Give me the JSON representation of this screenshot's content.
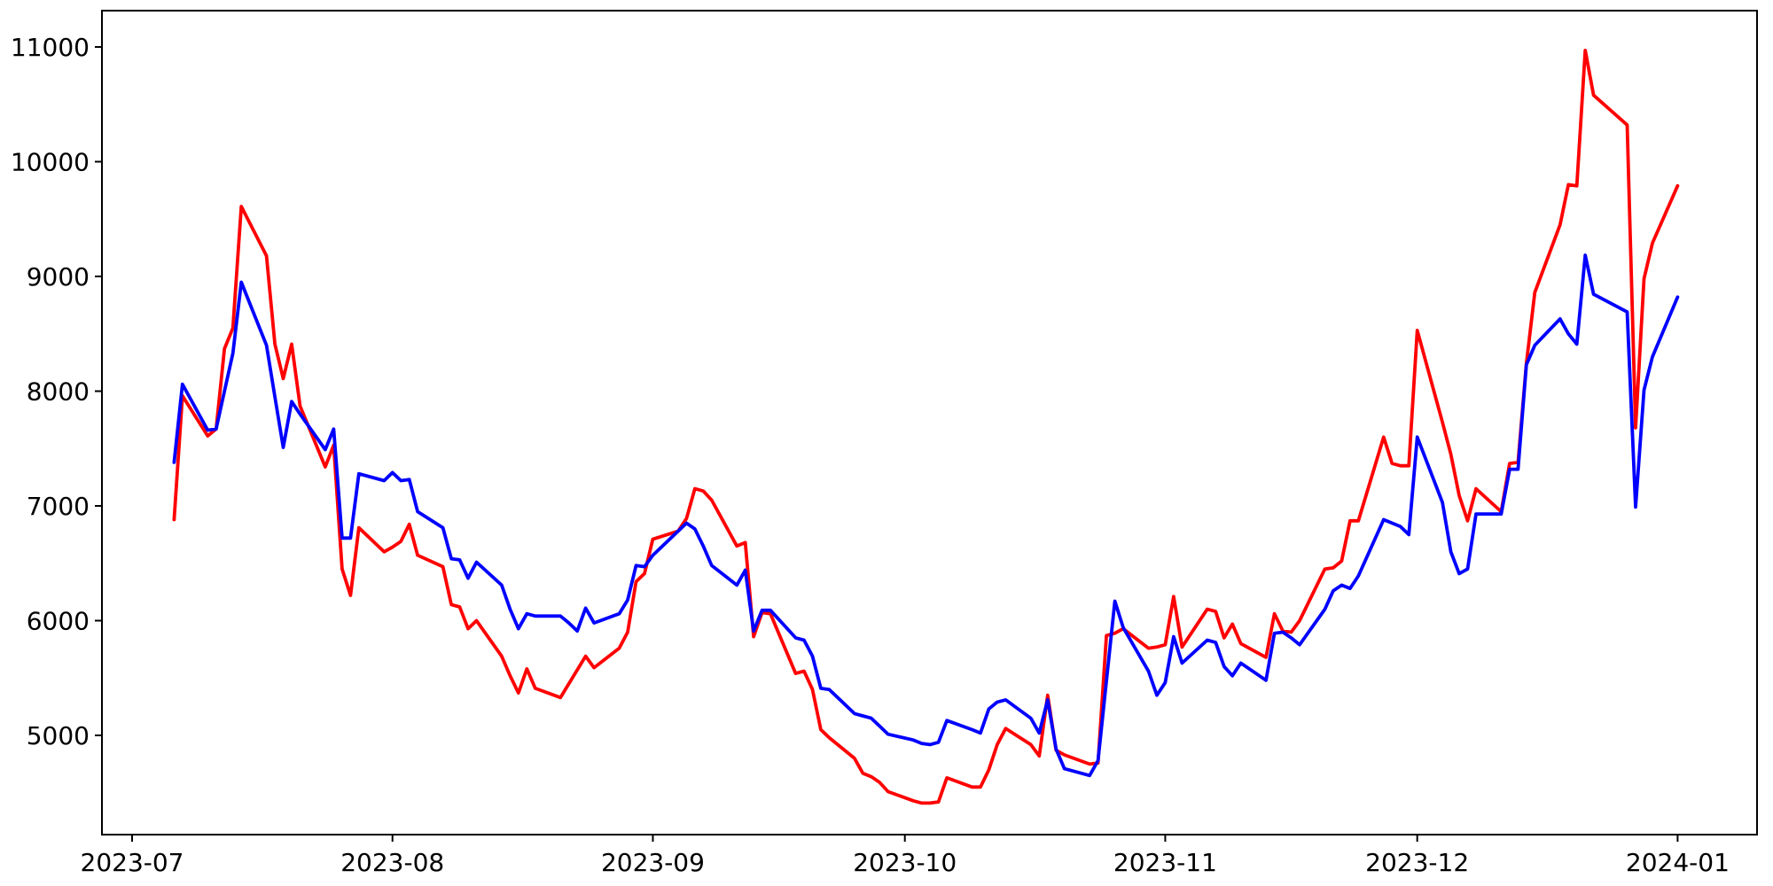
{
  "figure": {
    "background_color": "#ffffff",
    "axes_edge_color": "#000000",
    "tick_color": "#000000",
    "label_color": "#000000"
  },
  "chart_data": {
    "type": "line",
    "title": "",
    "xlabel": "",
    "ylabel": "",
    "grid": false,
    "legend": null,
    "x_axis": {
      "kind": "date",
      "tick_dates": [
        "2023-07-01",
        "2023-08-01",
        "2023-09-01",
        "2023-10-01",
        "2023-11-01",
        "2023-12-01",
        "2024-01-01"
      ],
      "tick_labels": [
        "2023-07",
        "2023-08",
        "2023-09",
        "2023-10",
        "2023-11",
        "2023-12",
        "2024-01"
      ],
      "xlim_dates": [
        "2023-06-27",
        "2024-01-10"
      ]
    },
    "y_axis": {
      "ticks": [
        5000,
        6000,
        7000,
        8000,
        9000,
        10000,
        11000
      ],
      "tick_labels": [
        "5000",
        "6000",
        "7000",
        "8000",
        "9000",
        "10000",
        "11000"
      ],
      "ylim": [
        4135,
        11317
      ]
    },
    "series": [
      {
        "name": "red-line",
        "color": "#ff0000",
        "points": [
          [
            "2023-07-06",
            6880
          ],
          [
            "2023-07-07",
            7960
          ],
          [
            "2023-07-10",
            7610
          ],
          [
            "2023-07-11",
            7670
          ],
          [
            "2023-07-12",
            8370
          ],
          [
            "2023-07-13",
            8550
          ],
          [
            "2023-07-14",
            9610
          ],
          [
            "2023-07-17",
            9180
          ],
          [
            "2023-07-18",
            8410
          ],
          [
            "2023-07-19",
            8110
          ],
          [
            "2023-07-20",
            8410
          ],
          [
            "2023-07-21",
            7870
          ],
          [
            "2023-07-24",
            7340
          ],
          [
            "2023-07-25",
            7530
          ],
          [
            "2023-07-26",
            6450
          ],
          [
            "2023-07-27",
            6220
          ],
          [
            "2023-07-28",
            6810
          ],
          [
            "2023-07-31",
            6600
          ],
          [
            "2023-08-01",
            6640
          ],
          [
            "2023-08-02",
            6690
          ],
          [
            "2023-08-03",
            6840
          ],
          [
            "2023-08-04",
            6570
          ],
          [
            "2023-08-07",
            6470
          ],
          [
            "2023-08-08",
            6140
          ],
          [
            "2023-08-09",
            6120
          ],
          [
            "2023-08-10",
            5930
          ],
          [
            "2023-08-11",
            6000
          ],
          [
            "2023-08-14",
            5690
          ],
          [
            "2023-08-15",
            5520
          ],
          [
            "2023-08-16",
            5370
          ],
          [
            "2023-08-17",
            5580
          ],
          [
            "2023-08-18",
            5410
          ],
          [
            "2023-08-21",
            5330
          ],
          [
            "2023-08-24",
            5690
          ],
          [
            "2023-08-25",
            5590
          ],
          [
            "2023-08-28",
            5760
          ],
          [
            "2023-08-29",
            5900
          ],
          [
            "2023-08-30",
            6340
          ],
          [
            "2023-08-31",
            6410
          ],
          [
            "2023-09-01",
            6710
          ],
          [
            "2023-09-04",
            6780
          ],
          [
            "2023-09-05",
            6890
          ],
          [
            "2023-09-06",
            7150
          ],
          [
            "2023-09-07",
            7130
          ],
          [
            "2023-09-08",
            7050
          ],
          [
            "2023-09-11",
            6650
          ],
          [
            "2023-09-12",
            6680
          ],
          [
            "2023-09-13",
            5860
          ],
          [
            "2023-09-14",
            6070
          ],
          [
            "2023-09-15",
            6060
          ],
          [
            "2023-09-18",
            5540
          ],
          [
            "2023-09-19",
            5560
          ],
          [
            "2023-09-20",
            5400
          ],
          [
            "2023-09-21",
            5050
          ],
          [
            "2023-09-22",
            4980
          ],
          [
            "2023-09-25",
            4800
          ],
          [
            "2023-09-26",
            4670
          ],
          [
            "2023-09-27",
            4640
          ],
          [
            "2023-09-28",
            4590
          ],
          [
            "2023-09-29",
            4510
          ],
          [
            "2023-10-02",
            4430
          ],
          [
            "2023-10-03",
            4410
          ],
          [
            "2023-10-04",
            4410
          ],
          [
            "2023-10-05",
            4420
          ],
          [
            "2023-10-06",
            4630
          ],
          [
            "2023-10-09",
            4550
          ],
          [
            "2023-10-10",
            4550
          ],
          [
            "2023-10-11",
            4700
          ],
          [
            "2023-10-12",
            4920
          ],
          [
            "2023-10-13",
            5060
          ],
          [
            "2023-10-16",
            4920
          ],
          [
            "2023-10-17",
            4820
          ],
          [
            "2023-10-18",
            5350
          ],
          [
            "2023-10-19",
            4870
          ],
          [
            "2023-10-20",
            4830
          ],
          [
            "2023-10-23",
            4750
          ],
          [
            "2023-10-24",
            4760
          ],
          [
            "2023-10-25",
            5870
          ],
          [
            "2023-10-26",
            5890
          ],
          [
            "2023-10-27",
            5930
          ],
          [
            "2023-10-30",
            5760
          ],
          [
            "2023-10-31",
            5770
          ],
          [
            "2023-11-01",
            5790
          ],
          [
            "2023-11-02",
            6210
          ],
          [
            "2023-11-03",
            5770
          ],
          [
            "2023-11-06",
            6100
          ],
          [
            "2023-11-07",
            6080
          ],
          [
            "2023-11-08",
            5850
          ],
          [
            "2023-11-09",
            5970
          ],
          [
            "2023-11-10",
            5800
          ],
          [
            "2023-11-13",
            5680
          ],
          [
            "2023-11-14",
            6060
          ],
          [
            "2023-11-15",
            5910
          ],
          [
            "2023-11-16",
            5900
          ],
          [
            "2023-11-17",
            6000
          ],
          [
            "2023-11-20",
            6450
          ],
          [
            "2023-11-21",
            6460
          ],
          [
            "2023-11-22",
            6520
          ],
          [
            "2023-11-23",
            6870
          ],
          [
            "2023-11-24",
            6870
          ],
          [
            "2023-11-27",
            7600
          ],
          [
            "2023-11-28",
            7370
          ],
          [
            "2023-11-29",
            7350
          ],
          [
            "2023-11-30",
            7350
          ],
          [
            "2023-12-01",
            8530
          ],
          [
            "2023-12-04",
            7730
          ],
          [
            "2023-12-05",
            7450
          ],
          [
            "2023-12-06",
            7090
          ],
          [
            "2023-12-07",
            6870
          ],
          [
            "2023-12-08",
            7150
          ],
          [
            "2023-12-11",
            6950
          ],
          [
            "2023-12-12",
            7370
          ],
          [
            "2023-12-13",
            7380
          ],
          [
            "2023-12-14",
            8240
          ],
          [
            "2023-12-15",
            8860
          ],
          [
            "2023-12-18",
            9450
          ],
          [
            "2023-12-19",
            9800
          ],
          [
            "2023-12-20",
            9790
          ],
          [
            "2023-12-21",
            10970
          ],
          [
            "2023-12-22",
            10580
          ],
          [
            "2023-12-26",
            10320
          ],
          [
            "2023-12-27",
            7680
          ],
          [
            "2023-12-28",
            8980
          ],
          [
            "2023-12-29",
            9290
          ],
          [
            "2024-01-01",
            9790
          ]
        ]
      },
      {
        "name": "blue-line",
        "color": "#0000ff",
        "points": [
          [
            "2023-07-06",
            7380
          ],
          [
            "2023-07-07",
            8060
          ],
          [
            "2023-07-10",
            7660
          ],
          [
            "2023-07-11",
            7670
          ],
          [
            "2023-07-12",
            8000
          ],
          [
            "2023-07-13",
            8330
          ],
          [
            "2023-07-14",
            8950
          ],
          [
            "2023-07-17",
            8400
          ],
          [
            "2023-07-18",
            7950
          ],
          [
            "2023-07-19",
            7510
          ],
          [
            "2023-07-20",
            7910
          ],
          [
            "2023-07-21",
            7800
          ],
          [
            "2023-07-24",
            7490
          ],
          [
            "2023-07-25",
            7670
          ],
          [
            "2023-07-26",
            6720
          ],
          [
            "2023-07-27",
            6720
          ],
          [
            "2023-07-28",
            7280
          ],
          [
            "2023-07-31",
            7220
          ],
          [
            "2023-08-01",
            7290
          ],
          [
            "2023-08-02",
            7220
          ],
          [
            "2023-08-03",
            7230
          ],
          [
            "2023-08-04",
            6950
          ],
          [
            "2023-08-07",
            6810
          ],
          [
            "2023-08-08",
            6540
          ],
          [
            "2023-08-09",
            6530
          ],
          [
            "2023-08-10",
            6370
          ],
          [
            "2023-08-11",
            6510
          ],
          [
            "2023-08-14",
            6310
          ],
          [
            "2023-08-15",
            6100
          ],
          [
            "2023-08-16",
            5930
          ],
          [
            "2023-08-17",
            6060
          ],
          [
            "2023-08-18",
            6040
          ],
          [
            "2023-08-21",
            6040
          ],
          [
            "2023-08-22",
            5980
          ],
          [
            "2023-08-23",
            5910
          ],
          [
            "2023-08-24",
            6110
          ],
          [
            "2023-08-25",
            5980
          ],
          [
            "2023-08-28",
            6060
          ],
          [
            "2023-08-29",
            6180
          ],
          [
            "2023-08-30",
            6480
          ],
          [
            "2023-08-31",
            6470
          ],
          [
            "2023-09-01",
            6570
          ],
          [
            "2023-09-04",
            6780
          ],
          [
            "2023-09-05",
            6850
          ],
          [
            "2023-09-06",
            6800
          ],
          [
            "2023-09-07",
            6650
          ],
          [
            "2023-09-08",
            6480
          ],
          [
            "2023-09-11",
            6310
          ],
          [
            "2023-09-12",
            6440
          ],
          [
            "2023-09-13",
            5910
          ],
          [
            "2023-09-14",
            6090
          ],
          [
            "2023-09-15",
            6090
          ],
          [
            "2023-09-18",
            5850
          ],
          [
            "2023-09-19",
            5830
          ],
          [
            "2023-09-20",
            5690
          ],
          [
            "2023-09-21",
            5410
          ],
          [
            "2023-09-22",
            5400
          ],
          [
            "2023-09-25",
            5190
          ],
          [
            "2023-09-26",
            5170
          ],
          [
            "2023-09-27",
            5150
          ],
          [
            "2023-09-28",
            5080
          ],
          [
            "2023-09-29",
            5010
          ],
          [
            "2023-10-02",
            4960
          ],
          [
            "2023-10-03",
            4930
          ],
          [
            "2023-10-04",
            4920
          ],
          [
            "2023-10-05",
            4940
          ],
          [
            "2023-10-06",
            5130
          ],
          [
            "2023-10-09",
            5050
          ],
          [
            "2023-10-10",
            5020
          ],
          [
            "2023-10-11",
            5230
          ],
          [
            "2023-10-12",
            5290
          ],
          [
            "2023-10-13",
            5310
          ],
          [
            "2023-10-16",
            5150
          ],
          [
            "2023-10-17",
            5020
          ],
          [
            "2023-10-18",
            5310
          ],
          [
            "2023-10-19",
            4880
          ],
          [
            "2023-10-20",
            4710
          ],
          [
            "2023-10-23",
            4650
          ],
          [
            "2023-10-24",
            4780
          ],
          [
            "2023-10-26",
            6170
          ],
          [
            "2023-10-27",
            5940
          ],
          [
            "2023-10-30",
            5560
          ],
          [
            "2023-10-31",
            5350
          ],
          [
            "2023-11-01",
            5460
          ],
          [
            "2023-11-02",
            5860
          ],
          [
            "2023-11-03",
            5630
          ],
          [
            "2023-11-06",
            5830
          ],
          [
            "2023-11-07",
            5810
          ],
          [
            "2023-11-08",
            5600
          ],
          [
            "2023-11-09",
            5520
          ],
          [
            "2023-11-10",
            5630
          ],
          [
            "2023-11-13",
            5480
          ],
          [
            "2023-11-14",
            5890
          ],
          [
            "2023-11-15",
            5900
          ],
          [
            "2023-11-16",
            5850
          ],
          [
            "2023-11-17",
            5790
          ],
          [
            "2023-11-20",
            6100
          ],
          [
            "2023-11-21",
            6260
          ],
          [
            "2023-11-22",
            6310
          ],
          [
            "2023-11-23",
            6280
          ],
          [
            "2023-11-24",
            6390
          ],
          [
            "2023-11-27",
            6880
          ],
          [
            "2023-11-28",
            6850
          ],
          [
            "2023-11-29",
            6820
          ],
          [
            "2023-11-30",
            6750
          ],
          [
            "2023-12-01",
            7600
          ],
          [
            "2023-12-04",
            7030
          ],
          [
            "2023-12-05",
            6600
          ],
          [
            "2023-12-06",
            6410
          ],
          [
            "2023-12-07",
            6450
          ],
          [
            "2023-12-08",
            6930
          ],
          [
            "2023-12-11",
            6930
          ],
          [
            "2023-12-12",
            7320
          ],
          [
            "2023-12-13",
            7320
          ],
          [
            "2023-12-14",
            8230
          ],
          [
            "2023-12-15",
            8400
          ],
          [
            "2023-12-18",
            8630
          ],
          [
            "2023-12-19",
            8500
          ],
          [
            "2023-12-20",
            8410
          ],
          [
            "2023-12-21",
            9185
          ],
          [
            "2023-12-22",
            8845
          ],
          [
            "2023-12-26",
            8690
          ],
          [
            "2023-12-27",
            6990
          ],
          [
            "2023-12-28",
            8010
          ],
          [
            "2023-12-29",
            8300
          ],
          [
            "2024-01-01",
            8820
          ]
        ]
      }
    ]
  }
}
